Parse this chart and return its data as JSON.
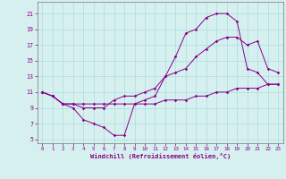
{
  "xlabel": "Windchill (Refroidissement éolien,°C)",
  "bg_color": "#d6f0f0",
  "line_color": "#880088",
  "grid_color": "#aadddd",
  "xlim": [
    -0.5,
    23.5
  ],
  "ylim": [
    4.5,
    22.5
  ],
  "yticks": [
    5,
    7,
    9,
    11,
    13,
    15,
    17,
    19,
    21
  ],
  "xticks": [
    0,
    1,
    2,
    3,
    4,
    5,
    6,
    7,
    8,
    9,
    10,
    11,
    12,
    13,
    14,
    15,
    16,
    17,
    18,
    19,
    20,
    21,
    22,
    23
  ],
  "line1_x": [
    0,
    1,
    2,
    3,
    4,
    5,
    6,
    7,
    8,
    9,
    10,
    11,
    12,
    13,
    14,
    15,
    16,
    17,
    18,
    19,
    20,
    21,
    22,
    23
  ],
  "line1_y": [
    11,
    10.5,
    9.5,
    9,
    7.5,
    7,
    6.5,
    5.5,
    5.5,
    9.5,
    10,
    10.5,
    13,
    15.5,
    18.5,
    19,
    20.5,
    21,
    21,
    20,
    14,
    13.5,
    12,
    12
  ],
  "line2_x": [
    0,
    1,
    2,
    3,
    4,
    5,
    6,
    7,
    8,
    9,
    10,
    11,
    12,
    13,
    14,
    15,
    16,
    17,
    18,
    19,
    20,
    21,
    22,
    23
  ],
  "line2_y": [
    11,
    10.5,
    9.5,
    9.5,
    9,
    9,
    9,
    10,
    10.5,
    10.5,
    11,
    11.5,
    13,
    13.5,
    14,
    15.5,
    16.5,
    17.5,
    18,
    18,
    17,
    17.5,
    14,
    13.5
  ],
  "line3_x": [
    0,
    1,
    2,
    3,
    4,
    5,
    6,
    7,
    8,
    9,
    10,
    11,
    12,
    13,
    14,
    15,
    16,
    17,
    18,
    19,
    20,
    21,
    22,
    23
  ],
  "line3_y": [
    11,
    10.5,
    9.5,
    9.5,
    9.5,
    9.5,
    9.5,
    9.5,
    9.5,
    9.5,
    9.5,
    9.5,
    10,
    10,
    10,
    10.5,
    10.5,
    11,
    11,
    11.5,
    11.5,
    11.5,
    12,
    12
  ]
}
